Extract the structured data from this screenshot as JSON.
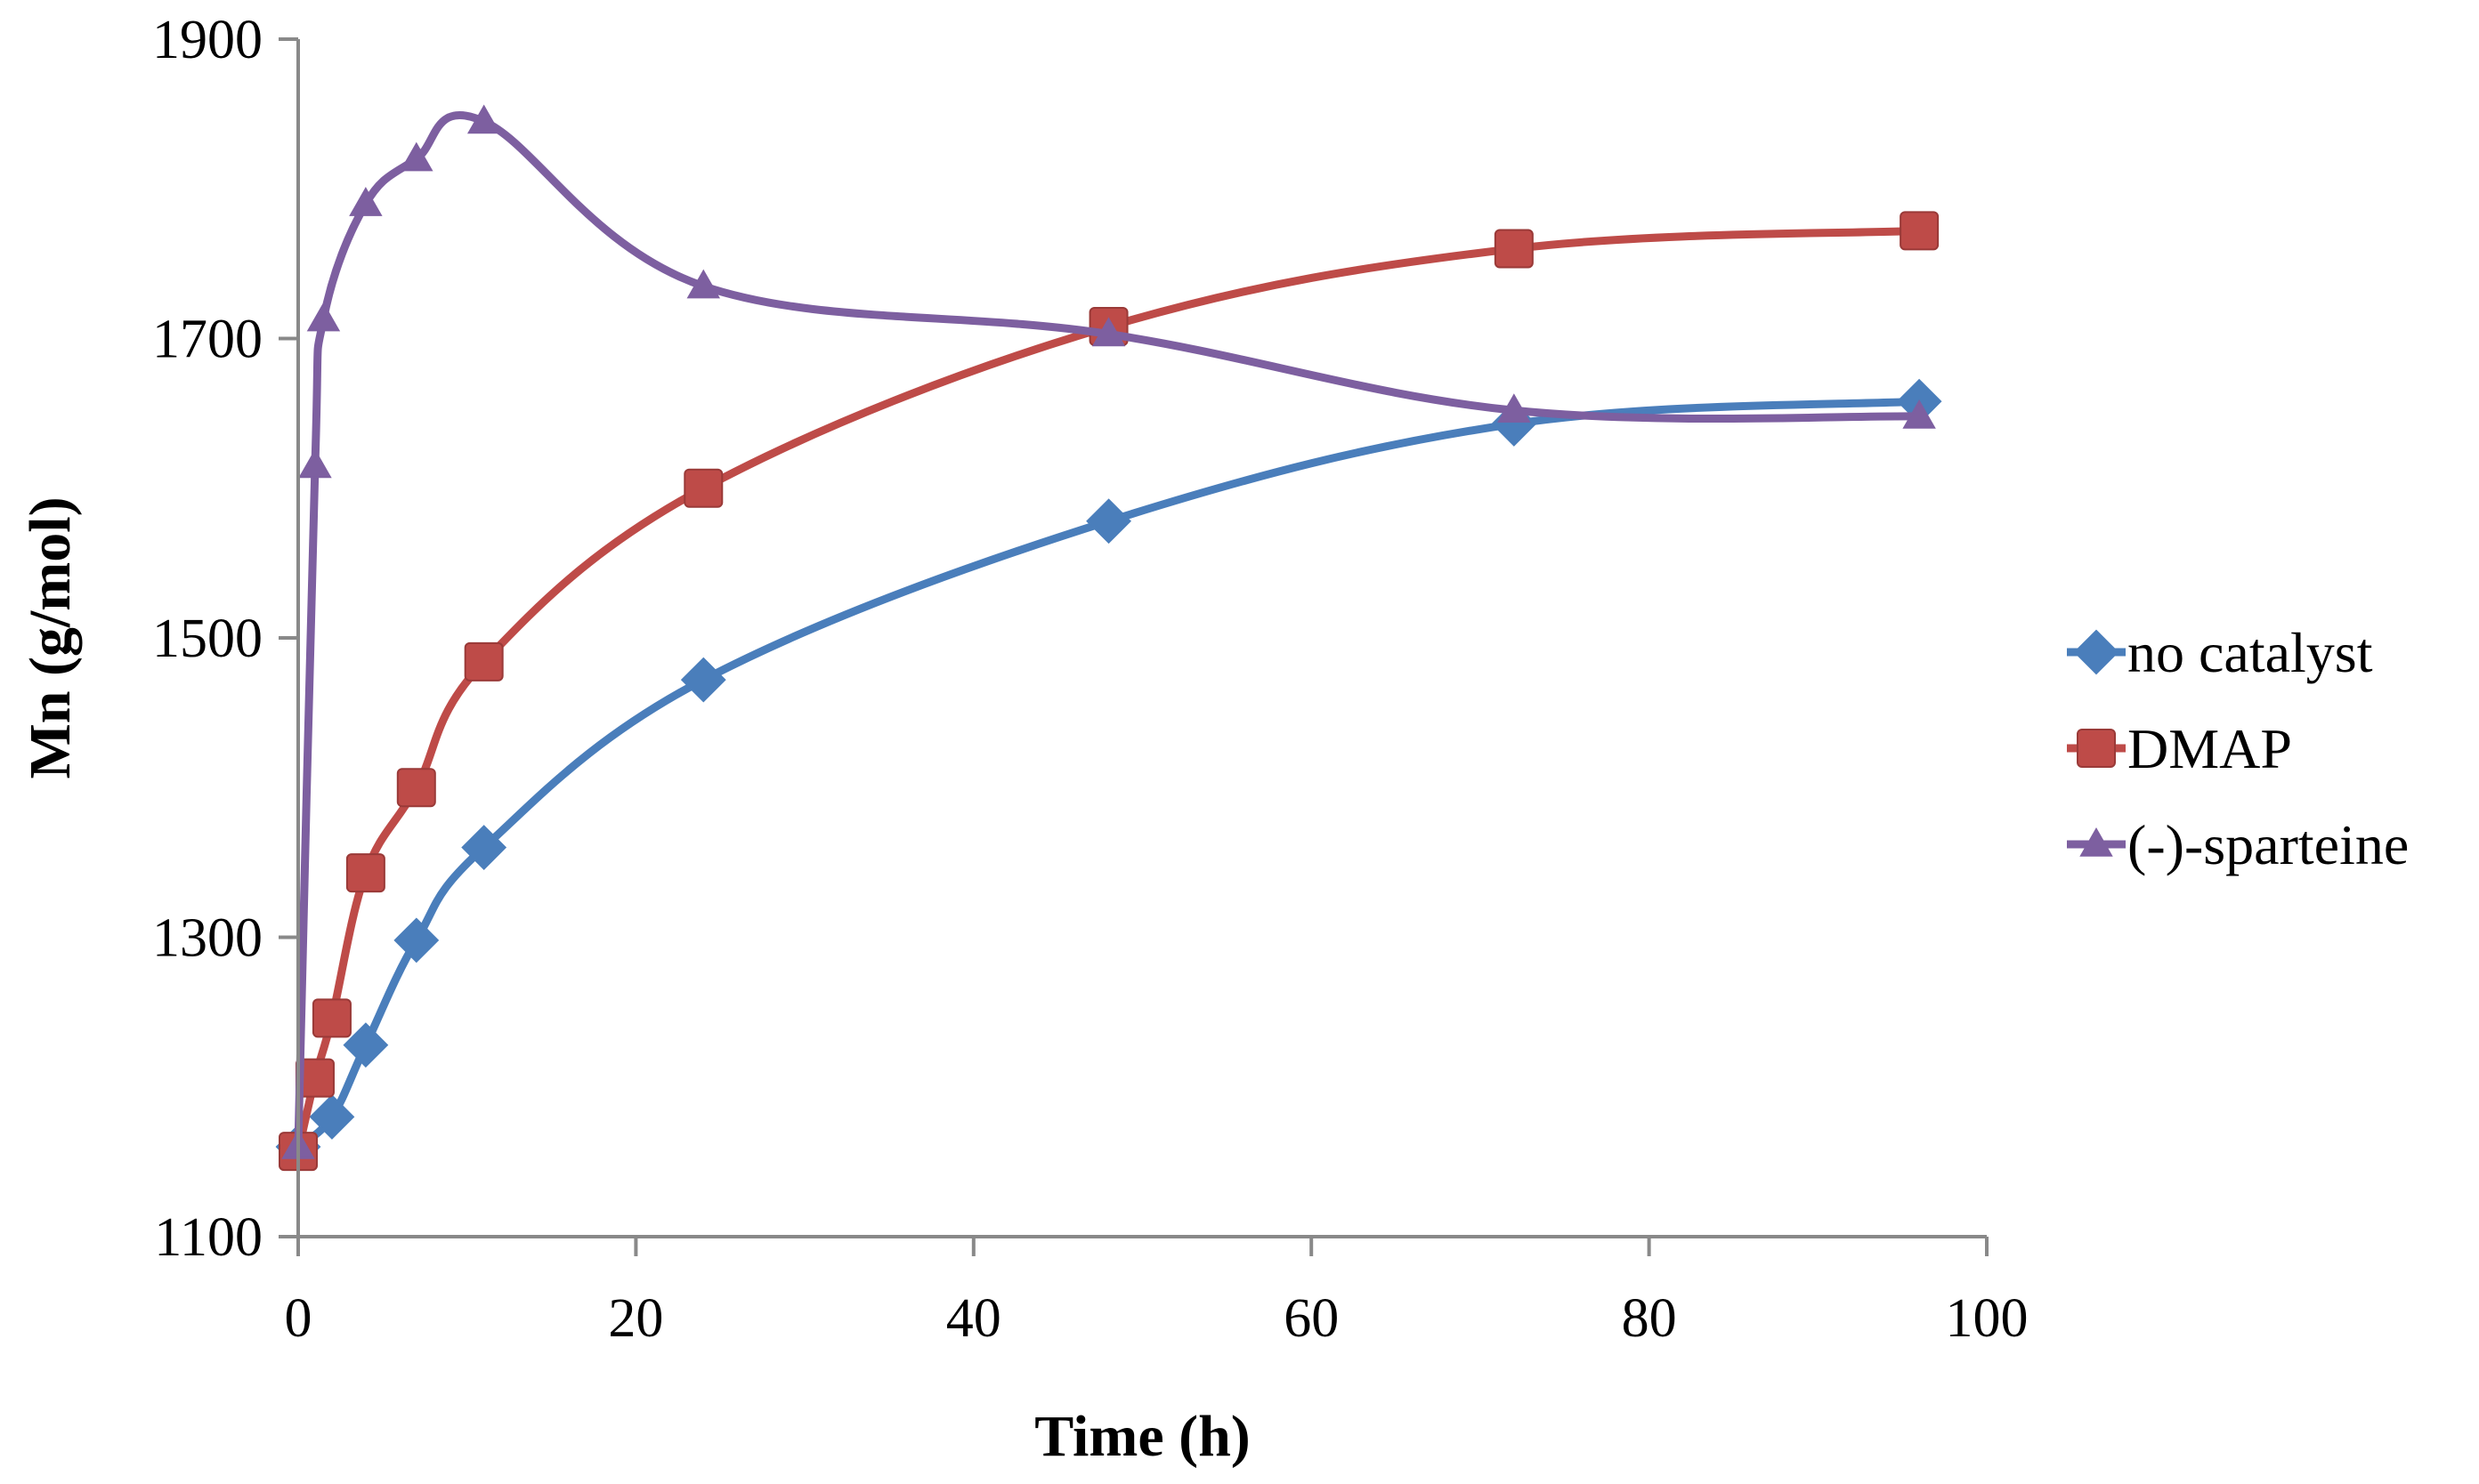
{
  "chart_data": {
    "type": "line",
    "title": "",
    "xlabel": "Time (h)",
    "ylabel": "Mn (g/mol)",
    "xlim": [
      0,
      100
    ],
    "ylim": [
      1100,
      1900
    ],
    "xticks": [
      0,
      20,
      40,
      60,
      80,
      100
    ],
    "yticks": [
      1100,
      1300,
      1500,
      1700,
      1900
    ],
    "xtick_labels": [
      "0",
      "20",
      "40",
      "60",
      "80",
      "100"
    ],
    "ytick_labels": [
      "1100",
      "1300",
      "1500",
      "1700",
      "1900"
    ],
    "grid": false,
    "legend_position": "right",
    "smooth": true,
    "series": [
      {
        "name": "no catalyst",
        "marker": "diamond",
        "color": "#4a7ebb",
        "x": [
          0,
          2,
          4,
          7,
          11,
          24,
          48,
          72,
          96
        ],
        "y": [
          1160,
          1180,
          1228,
          1298,
          1360,
          1472,
          1578,
          1643,
          1658
        ]
      },
      {
        "name": "DMAP",
        "marker": "square",
        "color": "#be4b48",
        "x": [
          0,
          1,
          2,
          4,
          7,
          11,
          24,
          48,
          72,
          96
        ],
        "y": [
          1157,
          1206,
          1246,
          1343,
          1400,
          1484,
          1600,
          1708,
          1760,
          1772
        ]
      },
      {
        "name": "(-)-sparteine",
        "marker": "triangle",
        "color": "#7d5fa0",
        "x": [
          0,
          1,
          1.5,
          4,
          7,
          11,
          24,
          48,
          72,
          96
        ],
        "y": [
          1160,
          1615,
          1713,
          1790,
          1820,
          1845,
          1735,
          1703,
          1652,
          1648
        ]
      }
    ]
  }
}
